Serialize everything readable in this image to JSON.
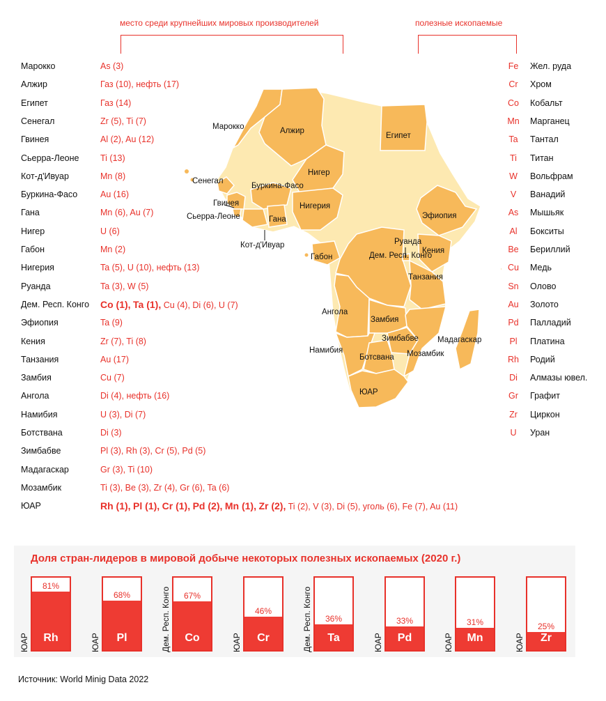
{
  "headers": {
    "left": "место среди крупнейших мировых производителей",
    "right": "полезные ископаемые"
  },
  "countries": [
    {
      "name": "Марокко",
      "bold": [],
      "rest": "As (3)"
    },
    {
      "name": "Алжир",
      "bold": [],
      "rest": "Газ (10), нефть (17)"
    },
    {
      "name": "Египет",
      "bold": [],
      "rest": "Газ (14)"
    },
    {
      "name": "Сенегал",
      "bold": [],
      "rest": "Zr (5), Ti (7)"
    },
    {
      "name": "Гвинея",
      "bold": [],
      "rest": "Al (2), Au (12)"
    },
    {
      "name": "Сьерра-Леоне",
      "bold": [],
      "rest": "Ti (13)"
    },
    {
      "name": "Кот-д'Ивуар",
      "bold": [],
      "rest": "Mn (8)"
    },
    {
      "name": "Буркина-Фасо",
      "bold": [],
      "rest": "Au (16)"
    },
    {
      "name": "Гана",
      "bold": [],
      "rest": "Mn (6), Au (7)"
    },
    {
      "name": "Нигер",
      "bold": [],
      "rest": "U (6)"
    },
    {
      "name": "Габон",
      "bold": [],
      "rest": "Mn (2)"
    },
    {
      "name": "Нигерия",
      "bold": [],
      "rest": "Ta (5), U (10), нефть (13)"
    },
    {
      "name": "Руанда",
      "bold": [],
      "rest": "Ta (3), W (5)"
    },
    {
      "name": "Дем. Респ. Конго",
      "bold": [
        "Co (1),",
        "Ta (1),"
      ],
      "rest": "Cu (4), Di (6), U (7)"
    },
    {
      "name": "Эфиопия",
      "bold": [],
      "rest": "Ta (9)"
    },
    {
      "name": "Кения",
      "bold": [],
      "rest": "Zr (7), Ti (8)"
    },
    {
      "name": "Танзания",
      "bold": [],
      "rest": "Au (17)"
    },
    {
      "name": "Замбия",
      "bold": [],
      "rest": "Cu (7)"
    },
    {
      "name": "Ангола",
      "bold": [],
      "rest": "Di (4), нефть (16)"
    },
    {
      "name": "Намибия",
      "bold": [],
      "rest": "U (3), Di (7)"
    },
    {
      "name": "Ботствана",
      "bold": [],
      "rest": "Di (3)"
    },
    {
      "name": "Зимбабве",
      "bold": [],
      "rest": "Pl (3), Rh (3), Cr (5), Pd (5)"
    },
    {
      "name": "Мадагаскар",
      "bold": [],
      "rest": "Gr (3), Ti (10)"
    },
    {
      "name": "Мозамбик",
      "bold": [],
      "rest": "Ti (3), Be (3), Zr (4), Gr (6), Ta (6)"
    },
    {
      "name": "ЮАР",
      "bold": [
        "Rh (1),",
        "Pl (1),",
        "Cr (1),",
        "Pd (2),",
        "Mn (1),",
        "Zr (2),"
      ],
      "rest": "Ti (2),  V (3), Di (5), уголь (6), Fe (7), Au (11)"
    }
  ],
  "minerals": [
    {
      "sym": "Fe",
      "name": "Жел. руда"
    },
    {
      "sym": "Cr",
      "name": "Хром"
    },
    {
      "sym": "Co",
      "name": "Кобальт"
    },
    {
      "sym": "Mn",
      "name": "Марганец"
    },
    {
      "sym": "Ta",
      "name": "Тантал"
    },
    {
      "sym": "Ti",
      "name": "Титан"
    },
    {
      "sym": "W",
      "name": "Вольфрам"
    },
    {
      "sym": "V",
      "name": "Ванадий"
    },
    {
      "sym": "As",
      "name": "Мышьяк"
    },
    {
      "sym": "Al",
      "name": "Бокситы"
    },
    {
      "sym": "Be",
      "name": "Бериллий"
    },
    {
      "sym": "Cu",
      "name": "Медь"
    },
    {
      "sym": "Sn",
      "name": "Олово"
    },
    {
      "sym": "Au",
      "name": "Золото"
    },
    {
      "sym": "Pd",
      "name": "Палладий"
    },
    {
      "sym": "Pl",
      "name": "Платина"
    },
    {
      "sym": "Rh",
      "name": "Родий"
    },
    {
      "sym": "Di",
      "name": "Алмазы ювел."
    },
    {
      "sym": "Gr",
      "name": "Графит"
    },
    {
      "sym": "Zr",
      "name": "Циркон"
    },
    {
      "sym": "U",
      "name": "Уран"
    }
  ],
  "map_labels": [
    "Марокко",
    "Алжир",
    "Египет",
    "Сенегал",
    "Буркина-Фасо",
    "Нигер",
    "Гвинея",
    "Сьерра-Леоне",
    "Гана",
    "Нигерия",
    "Эфиопия",
    "Кот-д'Ивуар",
    "Руанда",
    "Дем. Респ. Конго",
    "Кения",
    "Габон",
    "Танзания",
    "Ангола",
    "Замбия",
    "Зимбабве",
    "Мадагаскар",
    "Намибия",
    "Ботсвана",
    "Мозамбик",
    "ЮАР"
  ],
  "colors": {
    "accent": "#e8312a",
    "bar_fill": "#ee3b33",
    "map_highlight": "#f7b95a",
    "map_base": "#fde9b1",
    "border": "#ffffff"
  },
  "chart_data": {
    "type": "bar",
    "title": "Доля стран-лидеров в мировой добыче некоторых полезных ископаемых (2020 г.)",
    "categories": [
      "Rh",
      "Pl",
      "Co",
      "Cr",
      "Ta",
      "Pd",
      "Mn",
      "Zr"
    ],
    "countries": [
      "ЮАР",
      "ЮАР",
      "Дем. Респ. Конго",
      "ЮАР",
      "Дем. Респ. Конго",
      "ЮАР",
      "ЮАР",
      "ЮАР"
    ],
    "values": [
      81,
      68,
      67,
      46,
      36,
      33,
      31,
      25
    ],
    "value_labels": [
      "81%",
      "68%",
      "67%",
      "46%",
      "36%",
      "33%",
      "31%",
      "25%"
    ],
    "ylim": [
      0,
      100
    ],
    "unit": "%"
  },
  "source": "Источник: World Minig Data 2022"
}
